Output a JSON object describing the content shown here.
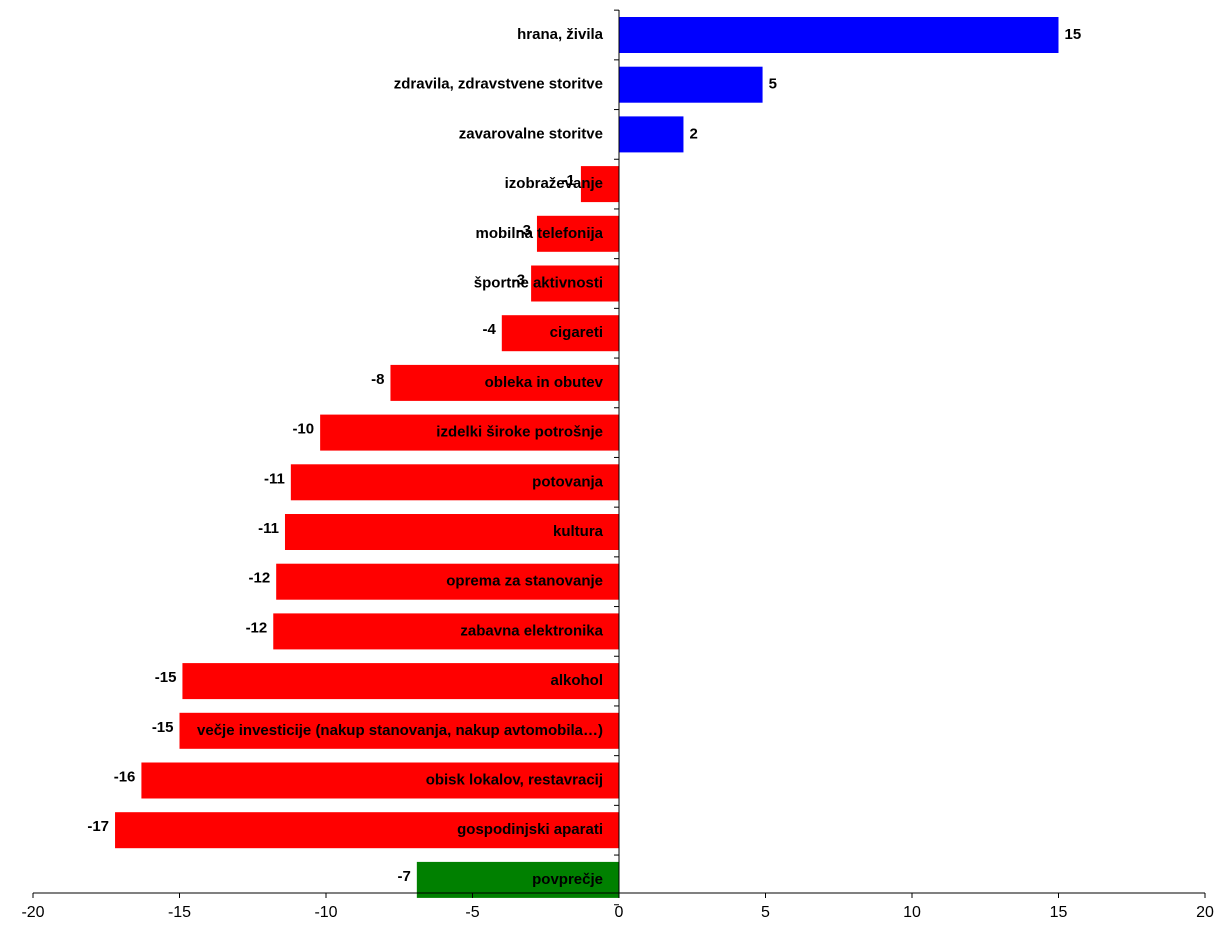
{
  "chart_data": {
    "type": "bar",
    "orientation": "horizontal",
    "categories": [
      "hrana, živila",
      "zdravila, zdravstvene storitve",
      "zavarovalne storitve",
      "izobraževanje",
      "mobilna telefonija",
      "športne aktivnosti",
      "cigareti",
      "obleka in obutev",
      "izdelki široke potrošnje",
      "potovanja",
      "kultura",
      "oprema za stanovanje",
      "zabavna elektronika",
      "alkohol",
      "večje investicije (nakup stanovanja, nakup avtomobila…)",
      "obisk lokalov, restavracij",
      "gospodinjski aparati",
      "povprečje"
    ],
    "values": [
      15.0,
      4.9,
      2.2,
      -1.3,
      -2.8,
      -3.0,
      -4.0,
      -7.8,
      -10.2,
      -11.2,
      -11.4,
      -11.7,
      -11.8,
      -14.9,
      -15.0,
      -16.3,
      -17.2,
      -6.9
    ],
    "data_labels": [
      "15",
      "5",
      "2",
      "-1",
      "-3",
      "-3",
      "-4",
      "-8",
      "-10",
      "-11",
      "-11",
      "-12",
      "-12",
      "-15",
      "-15",
      "-16",
      "-17",
      "-7"
    ],
    "bar_colors": [
      "#0000ff",
      "#0000ff",
      "#0000ff",
      "#ff0000",
      "#ff0000",
      "#ff0000",
      "#ff0000",
      "#ff0000",
      "#ff0000",
      "#ff0000",
      "#ff0000",
      "#ff0000",
      "#ff0000",
      "#ff0000",
      "#ff0000",
      "#ff0000",
      "#ff0000",
      "#008000"
    ],
    "xlim": [
      -20,
      20
    ],
    "x_ticks": [
      -20,
      -15,
      -10,
      -5,
      0,
      5,
      10,
      15,
      20
    ],
    "x_tick_labels": [
      "-20",
      "-15",
      "-10",
      "-5",
      "0",
      "5",
      "10",
      "15",
      "20"
    ],
    "title": "",
    "xlabel": "",
    "ylabel": "",
    "grid": false,
    "legend": "none"
  }
}
